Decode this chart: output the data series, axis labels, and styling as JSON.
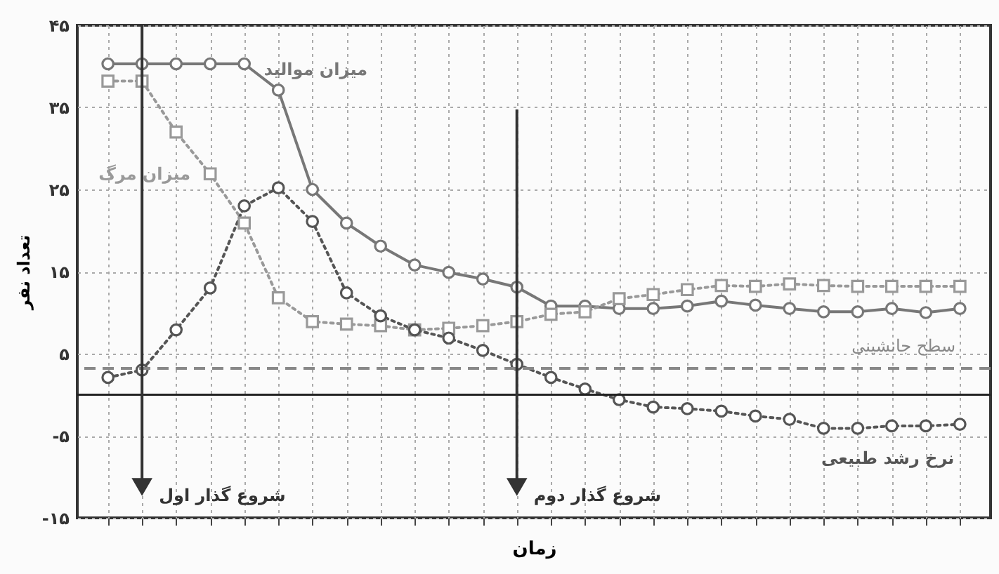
{
  "chart_data": {
    "type": "line",
    "xlabel": "زمان",
    "ylabel": "تعداد نفر",
    "categories": [
      null,
      null,
      null,
      null,
      null,
      null,
      null,
      null,
      null,
      null,
      null,
      null,
      null,
      null,
      null,
      null,
      null,
      null,
      null,
      null,
      null,
      null,
      null,
      null,
      null,
      null
    ],
    "ylim": [
      -15,
      45
    ],
    "yticks": [
      {
        "value": 45,
        "label": "۴۵"
      },
      {
        "value": 35,
        "label": "۳۵"
      },
      {
        "value": 25,
        "label": "۲۵"
      },
      {
        "value": 15,
        "label": "۱۵"
      },
      {
        "value": 5,
        "label": "۵"
      },
      {
        "value": 0,
        "label": null
      },
      {
        "value": -5,
        "label": "-۵"
      },
      {
        "value": -15,
        "label": "-۱۵"
      }
    ],
    "tick_labels": "y",
    "grid": true,
    "series": [
      {
        "name": "میزان موالید",
        "color": "#777777",
        "line_style": "solid",
        "marker": "circle",
        "values": [
          40.3,
          40.3,
          40.3,
          40.3,
          40.3,
          37.1,
          25.0,
          20.9,
          18.1,
          15.8,
          14.9,
          14.1,
          13.1,
          10.8,
          10.8,
          10.5,
          10.5,
          10.8,
          11.4,
          10.9,
          10.5,
          10.1,
          10.1,
          10.5,
          10.0,
          10.5
        ]
      },
      {
        "name": "میزان مرگ",
        "color": "#999999",
        "line_style": "dotted",
        "marker": "square",
        "values": [
          38.2,
          38.2,
          32.0,
          26.9,
          20.9,
          11.8,
          8.9,
          8.6,
          8.4,
          7.9,
          8.1,
          8.4,
          8.9,
          9.8,
          10.1,
          11.7,
          12.2,
          12.8,
          13.3,
          13.2,
          13.5,
          13.3,
          13.2,
          13.2,
          13.2,
          13.2
        ]
      },
      {
        "name": "نرخ رشد طبیعی",
        "color": "#555555",
        "line_style": "dotted",
        "marker": "circle",
        "values": [
          2.1,
          3.0,
          7.9,
          13.0,
          23.0,
          25.2,
          21.1,
          12.4,
          9.6,
          7.9,
          6.9,
          5.4,
          3.7,
          2.1,
          0.7,
          -0.6,
          -1.5,
          -1.7,
          -2.0,
          -2.6,
          -3.0,
          -4.1,
          -4.1,
          -3.8,
          -3.8,
          -3.6
        ]
      }
    ],
    "ref_lines": [
      {
        "axis": "y",
        "value": 0,
        "color": "#222222",
        "line_style": "solid"
      },
      {
        "axis": "y",
        "value": 3.2,
        "label": "سطح جانشینی",
        "color": "#888888",
        "line_style": "dashed"
      }
    ],
    "annotations": [
      "شروع گذار اول",
      "شروع گذار دوم"
    ]
  }
}
